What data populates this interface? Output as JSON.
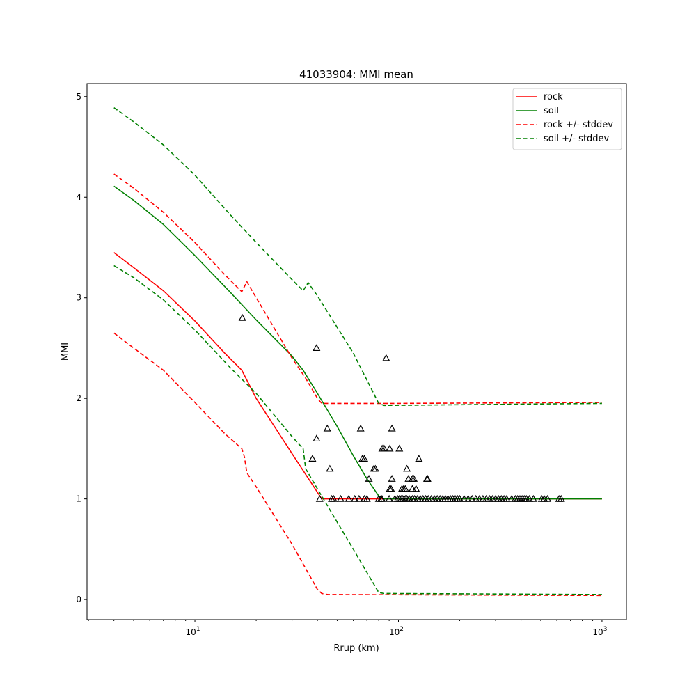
{
  "chart_data": {
    "type": "line",
    "title": "41033904: MMI mean",
    "xlabel": "Rrup (km)",
    "ylabel": "MMI",
    "xscale": "log",
    "xlim": [
      2.95,
      1318
    ],
    "ylim": [
      -0.2,
      5.13
    ],
    "xticks": [
      {
        "v": 10,
        "base": "10",
        "exp": "1"
      },
      {
        "v": 100,
        "base": "10",
        "exp": "2"
      },
      {
        "v": 1000,
        "base": "10",
        "exp": "3"
      }
    ],
    "yticks": [
      0,
      1,
      2,
      3,
      4,
      5
    ],
    "legend_position": "top-right",
    "series": [
      {
        "name": "rock",
        "color": "#ff0000",
        "dash": false,
        "points": [
          [
            4,
            3.45
          ],
          [
            5,
            3.3
          ],
          [
            7,
            3.07
          ],
          [
            10,
            2.77
          ],
          [
            14,
            2.45
          ],
          [
            17,
            2.28
          ],
          [
            20,
            2.0
          ],
          [
            30,
            1.45
          ],
          [
            42,
            1.0
          ],
          [
            1000,
            1.0
          ]
        ]
      },
      {
        "name": "soil",
        "color": "#008000",
        "dash": false,
        "points": [
          [
            4,
            4.11
          ],
          [
            5,
            3.97
          ],
          [
            7,
            3.73
          ],
          [
            10,
            3.42
          ],
          [
            15,
            3.05
          ],
          [
            20,
            2.78
          ],
          [
            30,
            2.42
          ],
          [
            34,
            2.28
          ],
          [
            40,
            2.05
          ],
          [
            50,
            1.72
          ],
          [
            60,
            1.43
          ],
          [
            70,
            1.2
          ],
          [
            80,
            1.03
          ],
          [
            85,
            1.0
          ],
          [
            1000,
            1.0
          ]
        ]
      },
      {
        "name": "rock +/- stddev",
        "color": "#ff0000",
        "dash": true,
        "points": [
          [
            4,
            4.23
          ],
          [
            5,
            4.09
          ],
          [
            7,
            3.85
          ],
          [
            10,
            3.55
          ],
          [
            14,
            3.23
          ],
          [
            17,
            3.06
          ],
          [
            18,
            3.16
          ],
          [
            20,
            3.0
          ],
          [
            30,
            2.4
          ],
          [
            35,
            2.2
          ],
          [
            40,
            2.0
          ],
          [
            42,
            1.95
          ],
          [
            100,
            1.95
          ],
          [
            1000,
            1.96
          ]
        ],
        "lower": [
          [
            4,
            2.65
          ],
          [
            5,
            2.5
          ],
          [
            7,
            2.28
          ],
          [
            10,
            1.96
          ],
          [
            14,
            1.65
          ],
          [
            17,
            1.5
          ],
          [
            17.5,
            1.42
          ],
          [
            18,
            1.26
          ],
          [
            20,
            1.12
          ],
          [
            30,
            0.55
          ],
          [
            40,
            0.1
          ],
          [
            42,
            0.06
          ],
          [
            45,
            0.05
          ],
          [
            1000,
            0.04
          ]
        ]
      },
      {
        "name": "soil +/- stddev",
        "color": "#008000",
        "dash": true,
        "points": [
          [
            4,
            4.89
          ],
          [
            5,
            4.75
          ],
          [
            7,
            4.52
          ],
          [
            10,
            4.22
          ],
          [
            15,
            3.82
          ],
          [
            20,
            3.55
          ],
          [
            30,
            3.18
          ],
          [
            34,
            3.07
          ],
          [
            36,
            3.15
          ],
          [
            40,
            3.02
          ],
          [
            60,
            2.45
          ],
          [
            80,
            1.95
          ],
          [
            85,
            1.93
          ],
          [
            1000,
            1.95
          ]
        ],
        "lower": [
          [
            4,
            3.32
          ],
          [
            5,
            3.2
          ],
          [
            7,
            2.98
          ],
          [
            10,
            2.68
          ],
          [
            15,
            2.3
          ],
          [
            20,
            2.05
          ],
          [
            30,
            1.62
          ],
          [
            34,
            1.5
          ],
          [
            35,
            1.3
          ],
          [
            40,
            1.1
          ],
          [
            60,
            0.5
          ],
          [
            80,
            0.07
          ],
          [
            85,
            0.06
          ],
          [
            1000,
            0.05
          ]
        ]
      }
    ],
    "observations": {
      "marker": "triangle",
      "points": [
        [
          17.1,
          2.8
        ],
        [
          39.6,
          2.5
        ],
        [
          87,
          2.4
        ],
        [
          44.7,
          1.7
        ],
        [
          65.2,
          1.7
        ],
        [
          92.9,
          1.7
        ],
        [
          39.6,
          1.6
        ],
        [
          83.2,
          1.5
        ],
        [
          85,
          1.5
        ],
        [
          90.6,
          1.5
        ],
        [
          101,
          1.5
        ],
        [
          37.8,
          1.4
        ],
        [
          66.5,
          1.4
        ],
        [
          68,
          1.4
        ],
        [
          126,
          1.4
        ],
        [
          46,
          1.3
        ],
        [
          75.7,
          1.3
        ],
        [
          77,
          1.3
        ],
        [
          110,
          1.3
        ],
        [
          71.6,
          1.2
        ],
        [
          92.9,
          1.2
        ],
        [
          112,
          1.2
        ],
        [
          117,
          1.2
        ],
        [
          119,
          1.2
        ],
        [
          138,
          1.2
        ],
        [
          139,
          1.2
        ],
        [
          90.6,
          1.1
        ],
        [
          92,
          1.1
        ],
        [
          104,
          1.1
        ],
        [
          106,
          1.1
        ],
        [
          108,
          1.1
        ],
        [
          117,
          1.1
        ],
        [
          122,
          1.1
        ]
      ],
      "at_one": [
        41,
        47,
        48,
        52,
        57,
        61,
        64,
        68,
        70,
        80,
        82,
        83,
        90,
        96,
        99,
        101,
        103,
        105,
        108,
        110,
        113,
        117,
        120,
        124,
        128,
        132,
        136,
        140,
        145,
        150,
        155,
        160,
        165,
        170,
        175,
        180,
        185,
        190,
        195,
        200,
        210,
        220,
        230,
        240,
        250,
        260,
        270,
        280,
        290,
        300,
        310,
        320,
        330,
        340,
        360,
        375,
        385,
        395,
        405,
        415,
        425,
        440,
        460,
        505,
        520,
        540,
        615,
        630
      ]
    }
  }
}
